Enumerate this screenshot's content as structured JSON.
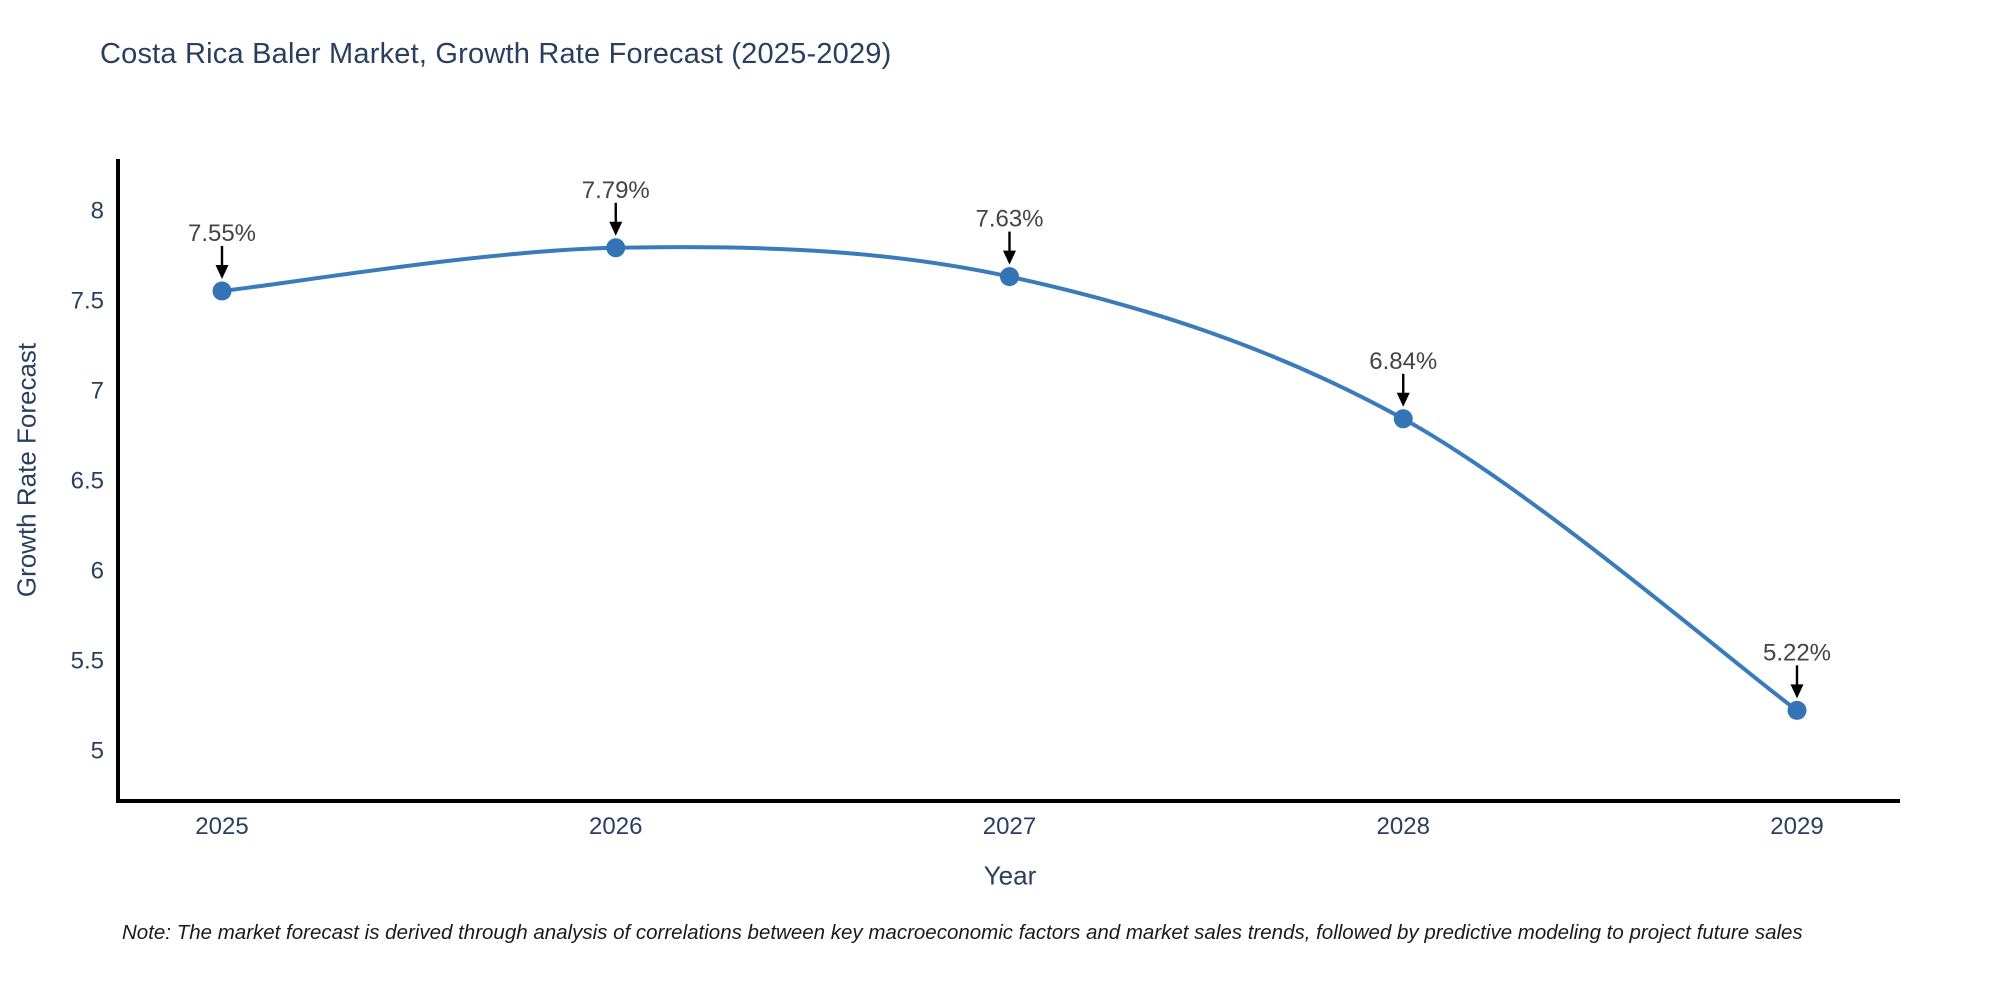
{
  "title": "Costa Rica Baler Market, Growth Rate Forecast (2025-2029)",
  "note": "Note: The market forecast is derived through analysis of correlations between key macroeconomic factors and market sales trends, followed by predictive modeling to project future sales",
  "chart_data": {
    "type": "line",
    "title": "Costa Rica Baler Market, Growth Rate Forecast (2025-2029)",
    "xlabel": "Year",
    "ylabel": "Growth Rate Forecast",
    "categories": [
      "2025",
      "2026",
      "2027",
      "2028",
      "2029"
    ],
    "values": [
      7.55,
      7.79,
      7.63,
      6.84,
      5.22
    ],
    "point_labels": [
      "7.55%",
      "7.79%",
      "7.63%",
      "6.84%",
      "5.22%"
    ],
    "yticks": [
      5,
      5.5,
      6,
      6.5,
      7,
      7.5,
      8
    ],
    "ylim": [
      4.72,
      8.28
    ],
    "grid": false,
    "legend": "none",
    "line_shape": "spline",
    "marker": "circle",
    "annotation_arrows": "down",
    "colors": {
      "line": "#3a7cb9",
      "marker": "#3474b4",
      "axis": "#000000",
      "text": "#2a3f5f",
      "annotation_text": "#444444",
      "arrow": "#000000",
      "background": "#ffffff"
    }
  }
}
